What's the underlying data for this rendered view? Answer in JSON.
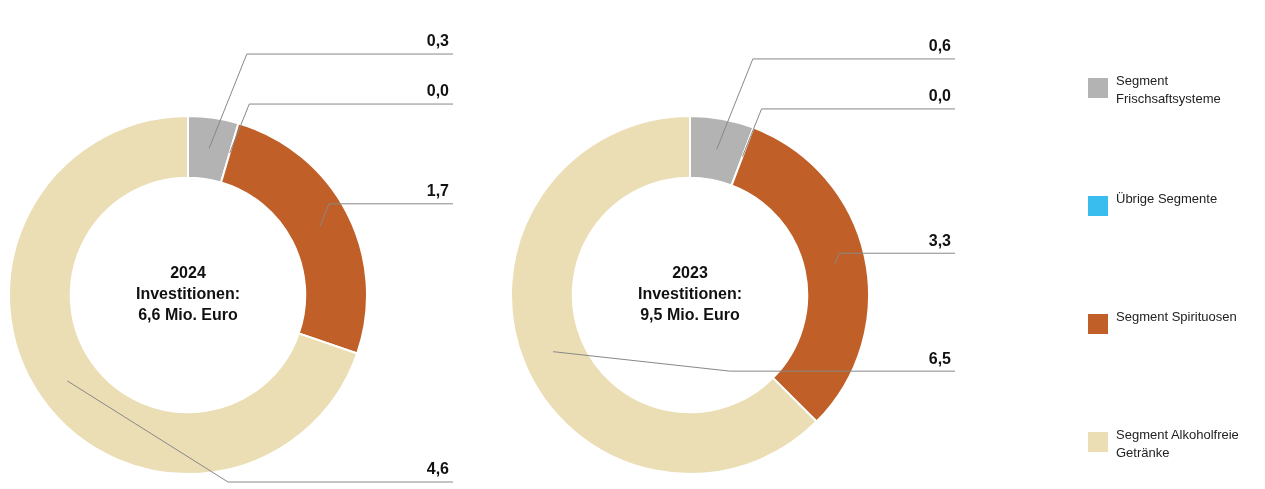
{
  "chart_data": [
    {
      "type": "donut",
      "title": "2024",
      "subtitle": "Investitionen: 6,6 Mio. Euro",
      "categories": [
        "Segment Frischsaftsysteme",
        "Übrige Segmente",
        "Segment Spirituosen",
        "Segment Alkoholfreie Getränke"
      ],
      "values": [
        0.3,
        0.0,
        1.7,
        4.6
      ],
      "colors": [
        "#b3b3b3",
        "#38bdee",
        "#c05f27",
        "#ebdeb5"
      ],
      "value_labels": [
        "0,3",
        "0,0",
        "1,7",
        "4,6"
      ],
      "legend": "right"
    },
    {
      "type": "donut",
      "title": "2023",
      "subtitle": "Investitionen: 9,5 Mio. Euro",
      "categories": [
        null,
        null,
        null,
        null
      ],
      "values": [
        0.6,
        0.0,
        3.3,
        6.5
      ],
      "colors": [
        "#b3b3b3",
        "#38bdee",
        "#c05f27",
        "#ebdeb5"
      ],
      "value_labels": [
        "0,6",
        "0,0",
        "3,3",
        "6,5"
      ]
    }
  ]
}
